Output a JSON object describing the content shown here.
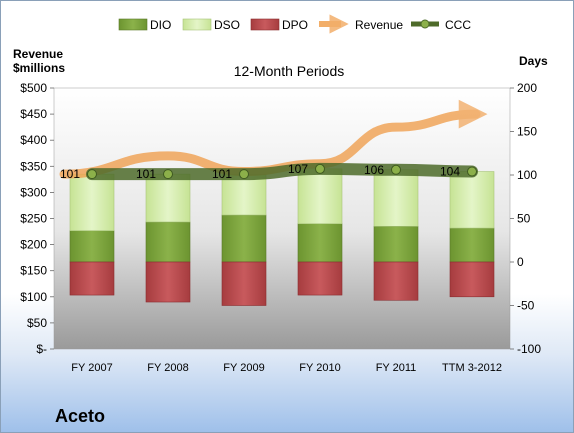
{
  "company": "Aceto",
  "chart_data": {
    "type": "bar",
    "subtitle": "12-Month Periods",
    "categories": [
      "FY 2007",
      "FY 2008",
      "FY 2009",
      "FY 2010",
      "FY 2011",
      "TTM 3-2012"
    ],
    "left_axis": {
      "label_line1": "Revenue",
      "label_line2": "$millions",
      "ticks": [
        "$-",
        "$50",
        "$100",
        "$150",
        "$200",
        "$250",
        "$300",
        "$350",
        "$400",
        "$450",
        "$500"
      ],
      "ylim": [
        0,
        500
      ]
    },
    "right_axis": {
      "label": "Days",
      "ticks": [
        "-100",
        "-50",
        "0",
        "50",
        "100",
        "150",
        "200"
      ],
      "ylim": [
        -100,
        200
      ]
    },
    "legend_position": "top",
    "grid": false,
    "series": [
      {
        "name": "DIO",
        "kind": "stacked-bar",
        "color": "#7ea33c",
        "values": [
          36,
          46,
          54,
          44,
          41,
          39
        ]
      },
      {
        "name": "DSO",
        "kind": "stacked-bar",
        "color": "#d6efb0",
        "values": [
          65,
          55,
          47,
          63,
          65,
          65
        ]
      },
      {
        "name": "DPO",
        "kind": "bar-below-zero",
        "color": "#b8474a",
        "values": [
          -38,
          -46,
          -50,
          -38,
          -44,
          -40
        ]
      },
      {
        "name": "Revenue",
        "kind": "line",
        "color": "#f0a050",
        "values": [
          335,
          370,
          340,
          355,
          425,
          450
        ]
      },
      {
        "name": "CCC",
        "kind": "line",
        "color": "#4e6b2a",
        "values": [
          101,
          101,
          101,
          107,
          106,
          104
        ]
      }
    ],
    "data_labels": [
      "101",
      "101",
      "101",
      "107",
      "106",
      "104"
    ]
  }
}
